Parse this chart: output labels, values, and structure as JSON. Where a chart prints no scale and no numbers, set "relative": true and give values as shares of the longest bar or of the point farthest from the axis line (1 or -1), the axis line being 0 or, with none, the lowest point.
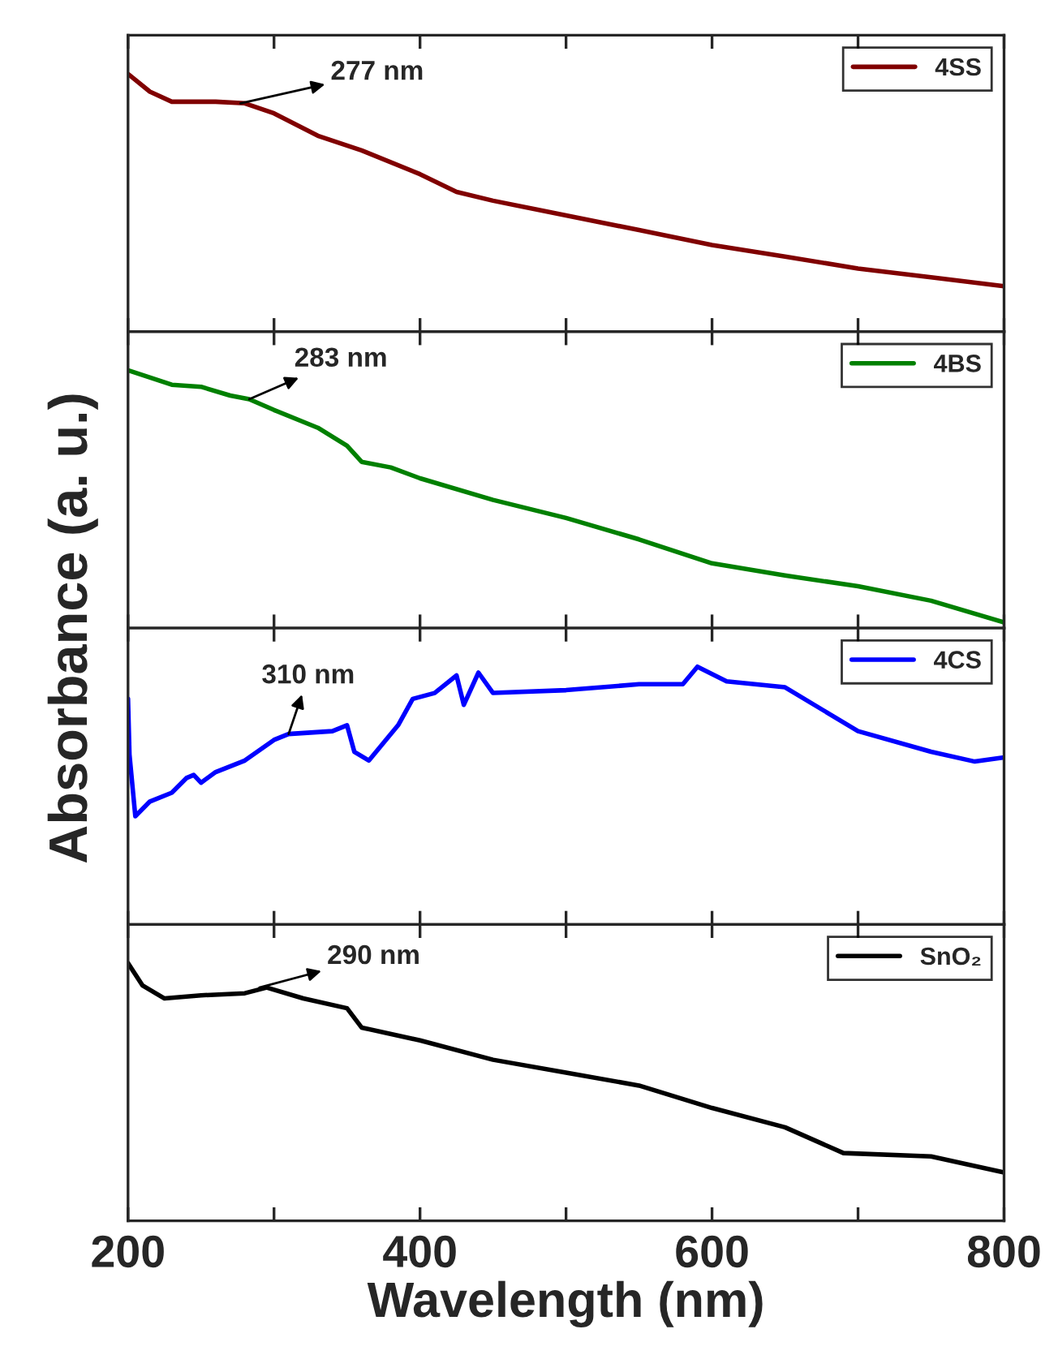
{
  "chart_data": [
    {
      "type": "line",
      "relative": true,
      "xlim": [
        200,
        800
      ],
      "xticks": [
        200,
        {
          "value": 300,
          "label": null
        },
        400,
        {
          "value": 500,
          "label": null
        },
        600,
        {
          "value": 700,
          "label": null
        },
        800
      ],
      "tick_labels": false,
      "legend": "top right",
      "series": [
        {
          "name": "4SS",
          "color": "#800000",
          "x": [
            200,
            215,
            230,
            260,
            280,
            300,
            330,
            360,
            400,
            425,
            450,
            500,
            550,
            600,
            650,
            700,
            750,
            800
          ],
          "values": [
            1.0,
            0.931,
            0.892,
            0.892,
            0.886,
            0.847,
            0.76,
            0.703,
            0.611,
            0.542,
            0.508,
            0.451,
            0.394,
            0.336,
            0.291,
            0.245,
            0.211,
            0.176
          ]
        }
      ],
      "annotations": [
        {
          "text": "277 nm",
          "x": 277,
          "y": 0.886
        }
      ]
    },
    {
      "type": "line",
      "relative": true,
      "xlim": [
        200,
        800
      ],
      "xticks": [
        200,
        {
          "value": 300,
          "label": null
        },
        400,
        {
          "value": 500,
          "label": null
        },
        600,
        {
          "value": 700,
          "label": null
        },
        800
      ],
      "tick_labels": false,
      "legend": "top right",
      "series": [
        {
          "name": "4BS",
          "color": "#008000",
          "x": [
            200,
            230,
            250,
            270,
            283,
            300,
            330,
            350,
            360,
            380,
            400,
            450,
            500,
            550,
            600,
            650,
            700,
            750,
            800
          ],
          "values": [
            1.0,
            0.944,
            0.936,
            0.902,
            0.888,
            0.846,
            0.777,
            0.707,
            0.645,
            0.623,
            0.581,
            0.497,
            0.427,
            0.344,
            0.251,
            0.204,
            0.162,
            0.106,
            0.022
          ]
        }
      ],
      "annotations": [
        {
          "text": "283 nm",
          "x": 283,
          "y": 0.888
        }
      ]
    },
    {
      "type": "line",
      "relative": true,
      "xlim": [
        200,
        800
      ],
      "xticks": [
        200,
        {
          "value": 300,
          "label": null
        },
        400,
        {
          "value": 500,
          "label": null
        },
        600,
        {
          "value": 700,
          "label": null
        },
        800
      ],
      "tick_labels": false,
      "legend": "top right",
      "series": [
        {
          "name": "4CS",
          "color": "#0000ff",
          "x": [
            200,
            201,
            205,
            215,
            230,
            240,
            245,
            250,
            260,
            280,
            300,
            310,
            340,
            350,
            355,
            365,
            375,
            385,
            395,
            410,
            425,
            430,
            440,
            450,
            500,
            550,
            580,
            590,
            610,
            650,
            700,
            750,
            780,
            800
          ],
          "values": [
            0.875,
            0.659,
            0.42,
            0.477,
            0.511,
            0.568,
            0.58,
            0.55,
            0.591,
            0.636,
            0.716,
            0.739,
            0.75,
            0.773,
            0.67,
            0.636,
            0.705,
            0.773,
            0.875,
            0.898,
            0.966,
            0.852,
            0.977,
            0.898,
            0.909,
            0.932,
            0.932,
            1.0,
            0.943,
            0.92,
            0.75,
            0.67,
            0.632,
            0.648
          ]
        }
      ],
      "annotations": [
        {
          "text": "310 nm",
          "x": 310,
          "y": 0.739
        }
      ]
    },
    {
      "type": "line",
      "relative": true,
      "xlim": [
        200,
        800
      ],
      "xticks": [
        200,
        {
          "value": 300,
          "label": null
        },
        400,
        {
          "value": 500,
          "label": null
        },
        600,
        {
          "value": 700,
          "label": null
        },
        800
      ],
      "tick_labels": "x",
      "legend": "top right",
      "xlabel": "Wavelength (nm)",
      "ylabel": "Absorbance (a. u.)",
      "series": [
        {
          "name": "SnO₂",
          "color": "#000000",
          "x": [
            200,
            210,
            225,
            250,
            280,
            295,
            320,
            350,
            360,
            400,
            450,
            500,
            550,
            600,
            650,
            690,
            750,
            800
          ],
          "values": [
            1.0,
            0.913,
            0.863,
            0.875,
            0.883,
            0.905,
            0.863,
            0.825,
            0.75,
            0.7,
            0.625,
            0.575,
            0.525,
            0.438,
            0.363,
            0.263,
            0.25,
            0.188
          ]
        }
      ],
      "annotations": [
        {
          "text": "290 nm",
          "x": 290,
          "y": 0.905
        }
      ]
    }
  ]
}
